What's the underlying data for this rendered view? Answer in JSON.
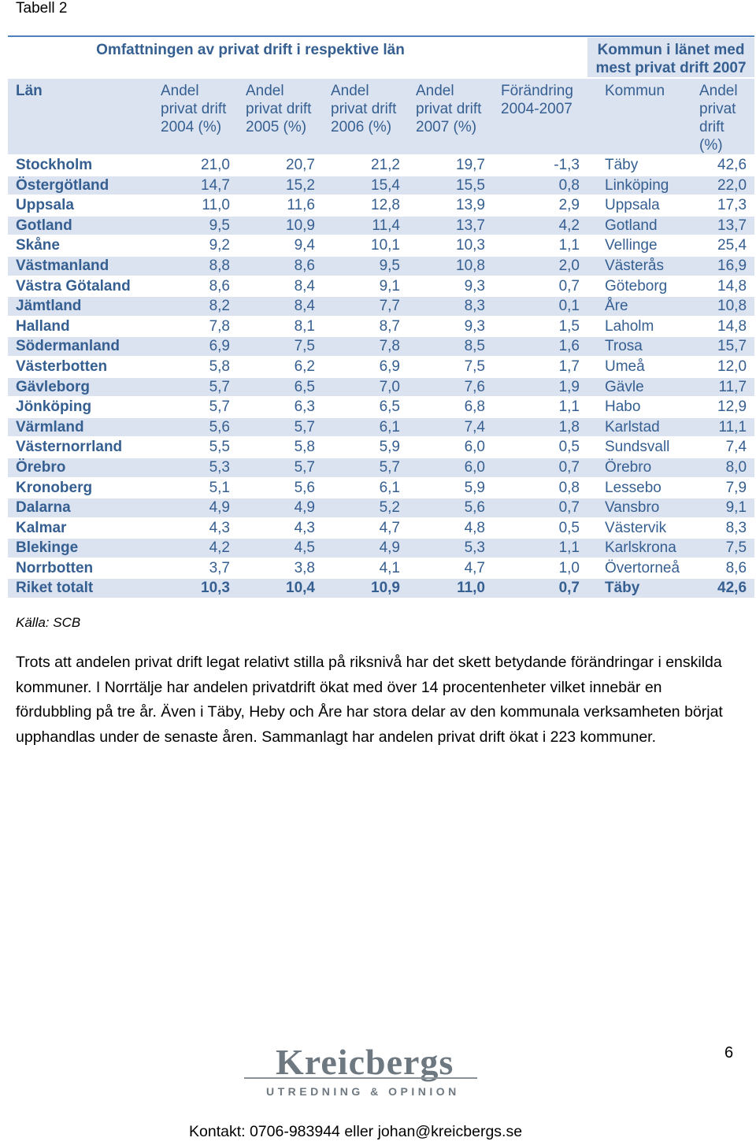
{
  "caption": "Tabell 2",
  "table": {
    "group_left": "Omfattningen av privat drift i respektive län",
    "group_right": "Kommun i länet med mest privat drift 2007",
    "headers": {
      "lan": "Län",
      "y2004": "Andel privat drift 2004 (%)",
      "y2005": "Andel privat drift 2005 (%)",
      "y2006": "Andel privat drift 2006 (%)",
      "y2007": "Andel privat drift 2007 (%)",
      "change": "Förändring 2004-2007",
      "kommun": "Kommun",
      "kshare": "Andel privat drift (%)"
    },
    "rows": [
      [
        "Stockholm",
        "21,0",
        "20,7",
        "21,2",
        "19,7",
        "-1,3",
        "Täby",
        "42,6"
      ],
      [
        "Östergötland",
        "14,7",
        "15,2",
        "15,4",
        "15,5",
        "0,8",
        "Linköping",
        "22,0"
      ],
      [
        "Uppsala",
        "11,0",
        "11,6",
        "12,8",
        "13,9",
        "2,9",
        "Uppsala",
        "17,3"
      ],
      [
        "Gotland",
        "9,5",
        "10,9",
        "11,4",
        "13,7",
        "4,2",
        "Gotland",
        "13,7"
      ],
      [
        "Skåne",
        "9,2",
        "9,4",
        "10,1",
        "10,3",
        "1,1",
        "Vellinge",
        "25,4"
      ],
      [
        "Västmanland",
        "8,8",
        "8,6",
        "9,5",
        "10,8",
        "2,0",
        "Västerås",
        "16,9"
      ],
      [
        "Västra Götaland",
        "8,6",
        "8,4",
        "9,1",
        "9,3",
        "0,7",
        "Göteborg",
        "14,8"
      ],
      [
        "Jämtland",
        "8,2",
        "8,4",
        "7,7",
        "8,3",
        "0,1",
        "Åre",
        "10,8"
      ],
      [
        "Halland",
        "7,8",
        "8,1",
        "8,7",
        "9,3",
        "1,5",
        "Laholm",
        "14,8"
      ],
      [
        "Södermanland",
        "6,9",
        "7,5",
        "7,8",
        "8,5",
        "1,6",
        "Trosa",
        "15,7"
      ],
      [
        "Västerbotten",
        "5,8",
        "6,2",
        "6,9",
        "7,5",
        "1,7",
        "Umeå",
        "12,0"
      ],
      [
        "Gävleborg",
        "5,7",
        "6,5",
        "7,0",
        "7,6",
        "1,9",
        "Gävle",
        "11,7"
      ],
      [
        "Jönköping",
        "5,7",
        "6,3",
        "6,5",
        "6,8",
        "1,1",
        "Habo",
        "12,9"
      ],
      [
        "Värmland",
        "5,6",
        "5,7",
        "6,1",
        "7,4",
        "1,8",
        "Karlstad",
        "11,1"
      ],
      [
        "Västernorrland",
        "5,5",
        "5,8",
        "5,9",
        "6,0",
        "0,5",
        "Sundsvall",
        "7,4"
      ],
      [
        "Örebro",
        "5,3",
        "5,7",
        "5,7",
        "6,0",
        "0,7",
        "Örebro",
        "8,0"
      ],
      [
        "Kronoberg",
        "5,1",
        "5,6",
        "6,1",
        "5,9",
        "0,8",
        "Lessebo",
        "7,9"
      ],
      [
        "Dalarna",
        "4,9",
        "4,9",
        "5,2",
        "5,6",
        "0,7",
        "Vansbro",
        "9,1"
      ],
      [
        "Kalmar",
        "4,3",
        "4,3",
        "4,7",
        "4,8",
        "0,5",
        "Västervik",
        "8,3"
      ],
      [
        "Blekinge",
        "4,2",
        "4,5",
        "4,9",
        "5,3",
        "1,1",
        "Karlskrona",
        "7,5"
      ],
      [
        "Norrbotten",
        "3,7",
        "3,8",
        "4,1",
        "4,7",
        "1,0",
        "Övertorneå",
        "8,6"
      ],
      [
        "Riket totalt",
        "10,3",
        "10,4",
        "10,9",
        "11,0",
        "0,7",
        "Täby",
        "42,6"
      ]
    ]
  },
  "source": "Källa: SCB",
  "paragraph": "Trots att andelen privat drift legat relativt stilla på riksnivå har det skett betydande förändringar i enskilda kommuner. I Norrtälje har andelen privatdrift ökat med över 14 procentenheter vilket innebär en fördubbling på tre år. Även i Täby, Heby och Åre har stora delar av den kommunala verksamheten börjat upphandlas under de senaste åren. Sammanlagt har andelen privat drift ökat i 223 kommuner.",
  "logo": {
    "name": "Kreicbergs",
    "tagline": "UTREDNING & OPINION"
  },
  "page_number": "6",
  "contact": "Kontakt: 0706-983944 eller johan@kreicbergs.se"
}
